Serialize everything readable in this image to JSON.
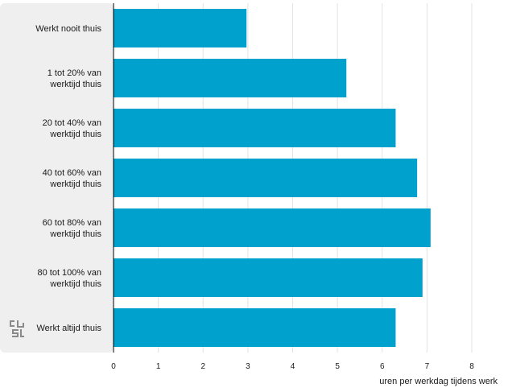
{
  "chart_data": {
    "type": "bar",
    "orientation": "horizontal",
    "categories": [
      "Werkt nooit thuis",
      "1 tot 20% van werktijd thuis",
      "20 tot 40% van werktijd thuis",
      "40 tot 60% van werktijd thuis",
      "60 tot 80% van werktijd thuis",
      "80 tot 100% van werktijd thuis",
      "Werkt altijd thuis"
    ],
    "values": [
      2.97,
      5.2,
      6.3,
      6.78,
      7.08,
      6.9,
      6.3
    ],
    "xlabel": "uren per werkdag tijdens werk",
    "xlim": [
      0,
      8
    ],
    "xticks": [
      0,
      1,
      2,
      3,
      4,
      5,
      6,
      7,
      8
    ],
    "grid": "vertical",
    "bar_color": "#00a1cd",
    "label_panel_color": "#efefef",
    "logo": "cbs-logo"
  }
}
